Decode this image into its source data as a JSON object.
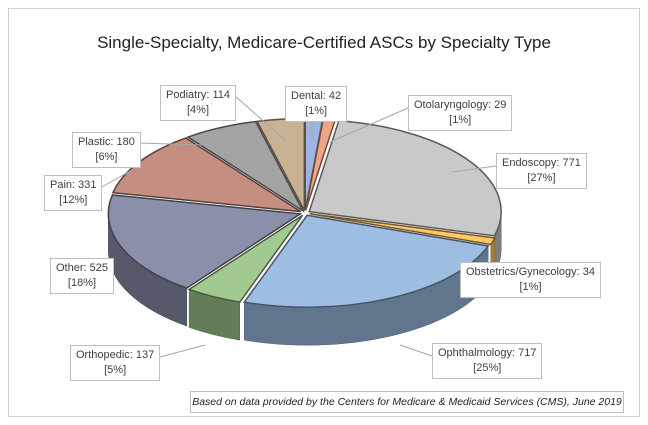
{
  "chart_data": {
    "type": "pie",
    "style": "3d-exploded",
    "title": "Single-Specialty, Medicare-Certified ASCs by Specialty Type",
    "categories": [
      "Dental",
      "Otolaryngology",
      "Endoscopy",
      "Obstetrics/Gynecology",
      "Ophthalmology",
      "Orthopedic",
      "Other",
      "Pain",
      "Plastic",
      "Podiatry"
    ],
    "values": [
      42,
      29,
      771,
      34,
      717,
      137,
      525,
      331,
      180,
      114
    ],
    "percents": [
      "1%",
      "1%",
      "27%",
      "1%",
      "25%",
      "5%",
      "18%",
      "12%",
      "6%",
      "4%"
    ],
    "colors": [
      "#9fb4e0",
      "#f0a486",
      "#c9c9c9",
      "#ffc966",
      "#9dbde3",
      "#a2c990",
      "#8a90aa",
      "#c48e80",
      "#a3a3a3",
      "#c9b194"
    ],
    "legend": "none",
    "footnote": "Based on data provided by the Centers for Medicare & Medicaid Services (CMS), June 2019"
  }
}
